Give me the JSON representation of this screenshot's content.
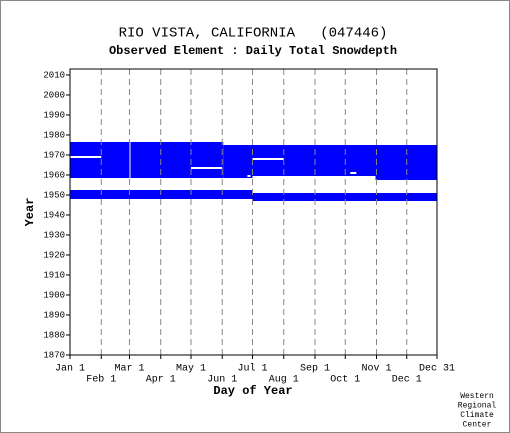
{
  "chart_data": {
    "type": "range",
    "title": "RIO VISTA, CALIFORNIA   (047446)",
    "subtitle": "Observed Element : Daily Total Snowdepth",
    "x_label": "Day of Year",
    "y_label": "Year",
    "credit": [
      "Western",
      "Regional",
      "Climate",
      "Center"
    ],
    "color": "#0000ff",
    "gap_color": "#ffffff",
    "xlim": [
      1,
      365
    ],
    "ylim": [
      1870,
      2013
    ],
    "xticks": [
      {
        "value": 1,
        "label": "Jan 1"
      },
      {
        "value": 32,
        "label": "Feb 1"
      },
      {
        "value": 60,
        "label": "Mar 1"
      },
      {
        "value": 91,
        "label": "Apr 1"
      },
      {
        "value": 121,
        "label": "May 1"
      },
      {
        "value": 152,
        "label": "Jun 1"
      },
      {
        "value": 182,
        "label": "Jul 1"
      },
      {
        "value": 213,
        "label": "Aug 1"
      },
      {
        "value": 244,
        "label": "Sep 1"
      },
      {
        "value": 274,
        "label": "Oct 1"
      },
      {
        "value": 305,
        "label": "Nov 1"
      },
      {
        "value": 335,
        "label": "Dec 1"
      },
      {
        "value": 365,
        "label": "Dec 31"
      }
    ],
    "yticks": [
      1870,
      1880,
      1890,
      1900,
      1910,
      1920,
      1930,
      1940,
      1950,
      1960,
      1970,
      1980,
      1990,
      2000,
      2010
    ],
    "grid": true,
    "blocks": [
      {
        "x": [
          1,
          153
        ],
        "y": [
          1958.5,
          1976.5
        ]
      },
      {
        "x": [
          153,
          182
        ],
        "y": [
          1958.5,
          1975
        ]
      },
      {
        "x": [
          182,
          304
        ],
        "y": [
          1959.5,
          1975
        ]
      },
      {
        "x": [
          304,
          365
        ],
        "y": [
          1957.5,
          1975
        ]
      },
      {
        "x": [
          1,
          182
        ],
        "y": [
          1948,
          1952.5
        ]
      },
      {
        "x": [
          182,
          365
        ],
        "y": [
          1947,
          1951
        ]
      }
    ],
    "gaps": [
      {
        "x": [
          1,
          32
        ],
        "y": [
          1968.5,
          1969.5
        ]
      },
      {
        "x": [
          121,
          152
        ],
        "y": [
          1963,
          1964
        ]
      },
      {
        "x": [
          182,
          213
        ],
        "y": [
          1967.5,
          1968.5
        ]
      },
      {
        "x": [
          279,
          285
        ],
        "y": [
          1960.5,
          1961.5
        ]
      },
      {
        "x": [
          177,
          180
        ],
        "y": [
          1959,
          1960
        ]
      },
      {
        "x": [
          60,
          61
        ],
        "y": [
          1958.5,
          1976.5
        ]
      }
    ]
  }
}
